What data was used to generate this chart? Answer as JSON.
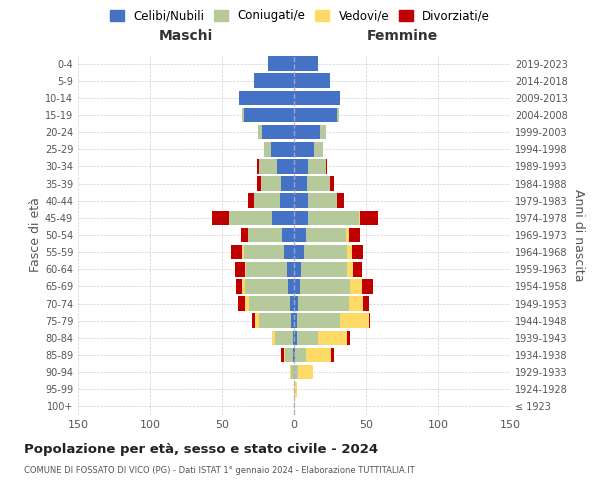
{
  "age_groups": [
    "100+",
    "95-99",
    "90-94",
    "85-89",
    "80-84",
    "75-79",
    "70-74",
    "65-69",
    "60-64",
    "55-59",
    "50-54",
    "45-49",
    "40-44",
    "35-39",
    "30-34",
    "25-29",
    "20-24",
    "15-19",
    "10-14",
    "5-9",
    "0-4"
  ],
  "birth_years": [
    "≤ 1923",
    "1924-1928",
    "1929-1933",
    "1934-1938",
    "1939-1943",
    "1944-1948",
    "1949-1953",
    "1954-1958",
    "1959-1963",
    "1964-1968",
    "1969-1973",
    "1974-1978",
    "1979-1983",
    "1984-1988",
    "1989-1993",
    "1994-1998",
    "1999-2003",
    "2004-2008",
    "2009-2013",
    "2014-2018",
    "2019-2023"
  ],
  "colors": {
    "celibi": "#4472c4",
    "coniugati": "#b5c99a",
    "vedovi": "#ffd966",
    "divorziati": "#c00000"
  },
  "maschi": {
    "celibi": [
      0,
      0,
      0,
      1,
      1,
      2,
      3,
      4,
      5,
      7,
      8,
      15,
      10,
      9,
      12,
      16,
      22,
      35,
      38,
      28,
      18
    ],
    "coniugati": [
      0,
      0,
      2,
      5,
      12,
      22,
      28,
      30,
      28,
      28,
      24,
      30,
      18,
      14,
      12,
      5,
      3,
      1,
      0,
      0,
      0
    ],
    "vedovi": [
      0,
      0,
      1,
      1,
      2,
      3,
      3,
      2,
      1,
      1,
      0,
      0,
      0,
      0,
      0,
      0,
      0,
      0,
      0,
      0,
      0
    ],
    "divorziati": [
      0,
      0,
      0,
      2,
      0,
      2,
      5,
      4,
      7,
      8,
      5,
      12,
      4,
      3,
      2,
      0,
      0,
      0,
      0,
      0,
      0
    ]
  },
  "femmine": {
    "celibi": [
      0,
      0,
      0,
      1,
      2,
      2,
      3,
      4,
      5,
      7,
      8,
      10,
      10,
      9,
      10,
      14,
      18,
      30,
      32,
      25,
      17
    ],
    "coniugati": [
      0,
      0,
      3,
      7,
      15,
      30,
      35,
      35,
      32,
      30,
      28,
      35,
      20,
      16,
      12,
      6,
      4,
      1,
      0,
      0,
      0
    ],
    "vedovi": [
      1,
      2,
      10,
      18,
      20,
      20,
      10,
      8,
      4,
      3,
      2,
      1,
      0,
      0,
      0,
      0,
      0,
      0,
      0,
      0,
      0
    ],
    "divorziati": [
      0,
      0,
      0,
      2,
      2,
      1,
      4,
      8,
      6,
      8,
      8,
      12,
      5,
      3,
      1,
      0,
      0,
      0,
      0,
      0,
      0
    ]
  },
  "xlim": 150,
  "title": "Popolazione per età, sesso e stato civile - 2024",
  "subtitle": "COMUNE DI FOSSATO DI VICO (PG) - Dati ISTAT 1° gennaio 2024 - Elaborazione TUTTITALIA.IT",
  "ylabel_left": "Fasce di età",
  "ylabel_right": "Anni di nascita",
  "xlabel_left": "Maschi",
  "xlabel_right": "Femmine",
  "legend_labels": [
    "Celibi/Nubili",
    "Coniugati/e",
    "Vedovi/e",
    "Divorziati/e"
  ],
  "background_color": "#ffffff",
  "grid_color": "#cccccc"
}
